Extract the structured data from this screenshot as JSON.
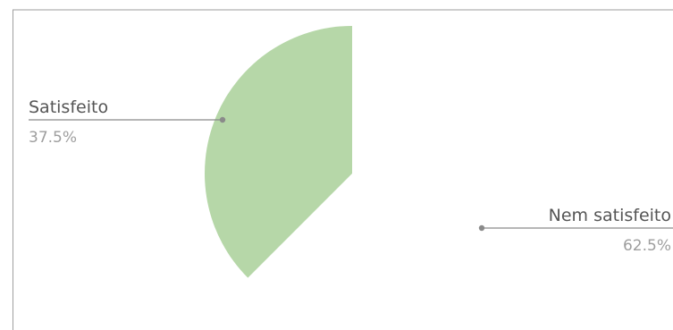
{
  "chart_data": {
    "type": "pie",
    "title": "",
    "slices": [
      {
        "label": "Nem satisfeito",
        "percent_label": "62.5%",
        "value": 62.5,
        "color": "#ffffff"
      },
      {
        "label": "Satisfeito",
        "percent_label": "37.5%",
        "value": 37.5,
        "color": "#b6d7a8"
      }
    ],
    "frame_color": "#9e9e9e",
    "leader_color": "#8a8a8a",
    "name_color": "#555555",
    "percent_color": "#9e9e9e"
  }
}
